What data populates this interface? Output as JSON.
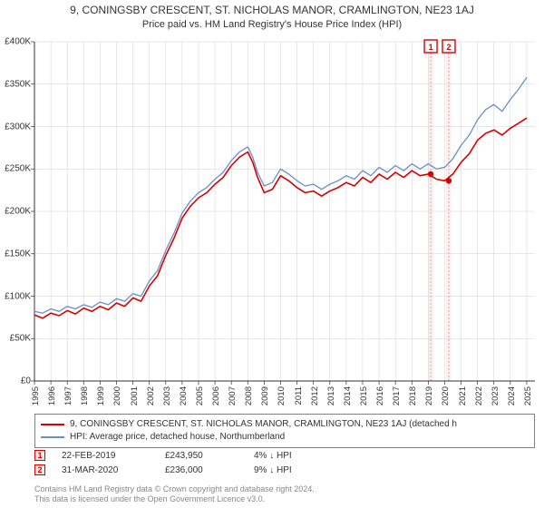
{
  "title": "9, CONINGSBY CRESCENT, ST. NICHOLAS MANOR, CRAMLINGTON, NE23 1AJ",
  "subtitle": "Price paid vs. HM Land Registry's House Price Index (HPI)",
  "chart": {
    "type": "line",
    "background_color": "#ffffff",
    "grid_color": "#d0d0d0",
    "x_years": [
      1995,
      1996,
      1997,
      1998,
      1999,
      2000,
      2001,
      2002,
      2003,
      2004,
      2005,
      2006,
      2007,
      2008,
      2009,
      2010,
      2011,
      2012,
      2013,
      2014,
      2015,
      2016,
      2017,
      2018,
      2019,
      2020,
      2021,
      2022,
      2023,
      2024,
      2025
    ],
    "xlim": [
      1995,
      2025.5
    ],
    "ylim": [
      0,
      400000
    ],
    "ytick_step": 50000,
    "y_tick_labels": [
      "£0",
      "£50K",
      "£100K",
      "£150K",
      "£200K",
      "£250K",
      "£300K",
      "£350K",
      "£400K"
    ],
    "series": [
      {
        "name": "red",
        "color": "#d90000",
        "width": 1.6,
        "legend": "9, CONINGSBY CRESCENT, ST. NICHOLAS MANOR, CRAMLINGTON, NE23 1AJ (detached h",
        "points": [
          [
            1995.0,
            78000
          ],
          [
            1995.5,
            74000
          ],
          [
            1996.0,
            80000
          ],
          [
            1996.5,
            77000
          ],
          [
            1997.0,
            83000
          ],
          [
            1997.5,
            79000
          ],
          [
            1998.0,
            86000
          ],
          [
            1998.5,
            82000
          ],
          [
            1999.0,
            88000
          ],
          [
            1999.5,
            84000
          ],
          [
            2000.0,
            92000
          ],
          [
            2000.5,
            88000
          ],
          [
            2001.0,
            98000
          ],
          [
            2001.5,
            94000
          ],
          [
            2002.0,
            112000
          ],
          [
            2002.5,
            124000
          ],
          [
            2003.0,
            148000
          ],
          [
            2003.5,
            168000
          ],
          [
            2004.0,
            192000
          ],
          [
            2004.5,
            206000
          ],
          [
            2005.0,
            216000
          ],
          [
            2005.5,
            222000
          ],
          [
            2006.0,
            232000
          ],
          [
            2006.5,
            240000
          ],
          [
            2007.0,
            254000
          ],
          [
            2007.5,
            264000
          ],
          [
            2008.0,
            270000
          ],
          [
            2008.3,
            258000
          ],
          [
            2008.6,
            240000
          ],
          [
            2009.0,
            222000
          ],
          [
            2009.5,
            226000
          ],
          [
            2010.0,
            242000
          ],
          [
            2010.5,
            236000
          ],
          [
            2011.0,
            228000
          ],
          [
            2011.5,
            222000
          ],
          [
            2012.0,
            224000
          ],
          [
            2012.5,
            218000
          ],
          [
            2013.0,
            224000
          ],
          [
            2013.5,
            228000
          ],
          [
            2014.0,
            234000
          ],
          [
            2014.5,
            230000
          ],
          [
            2015.0,
            240000
          ],
          [
            2015.5,
            234000
          ],
          [
            2016.0,
            244000
          ],
          [
            2016.5,
            238000
          ],
          [
            2017.0,
            246000
          ],
          [
            2017.5,
            240000
          ],
          [
            2018.0,
            248000
          ],
          [
            2018.5,
            242000
          ],
          [
            2019.0,
            244000
          ],
          [
            2019.5,
            238000
          ],
          [
            2020.0,
            236000
          ],
          [
            2020.5,
            244000
          ],
          [
            2021.0,
            258000
          ],
          [
            2021.5,
            268000
          ],
          [
            2022.0,
            284000
          ],
          [
            2022.5,
            292000
          ],
          [
            2023.0,
            296000
          ],
          [
            2023.5,
            290000
          ],
          [
            2024.0,
            298000
          ],
          [
            2024.5,
            304000
          ],
          [
            2025.0,
            310000
          ]
        ]
      },
      {
        "name": "blue",
        "color": "#6a8fc8",
        "width": 1.3,
        "legend": "HPI: Average price, detached house, Northumberland",
        "points": [
          [
            1995.0,
            82000
          ],
          [
            1995.5,
            80000
          ],
          [
            1996.0,
            85000
          ],
          [
            1996.5,
            82000
          ],
          [
            1997.0,
            88000
          ],
          [
            1997.5,
            85000
          ],
          [
            1998.0,
            90000
          ],
          [
            1998.5,
            87000
          ],
          [
            1999.0,
            93000
          ],
          [
            1999.5,
            90000
          ],
          [
            2000.0,
            97000
          ],
          [
            2000.5,
            94000
          ],
          [
            2001.0,
            103000
          ],
          [
            2001.5,
            100000
          ],
          [
            2002.0,
            118000
          ],
          [
            2002.5,
            130000
          ],
          [
            2003.0,
            154000
          ],
          [
            2003.5,
            174000
          ],
          [
            2004.0,
            198000
          ],
          [
            2004.5,
            212000
          ],
          [
            2005.0,
            222000
          ],
          [
            2005.5,
            228000
          ],
          [
            2006.0,
            238000
          ],
          [
            2006.5,
            246000
          ],
          [
            2007.0,
            260000
          ],
          [
            2007.5,
            270000
          ],
          [
            2008.0,
            276000
          ],
          [
            2008.3,
            264000
          ],
          [
            2008.6,
            246000
          ],
          [
            2009.0,
            230000
          ],
          [
            2009.5,
            234000
          ],
          [
            2010.0,
            250000
          ],
          [
            2010.5,
            244000
          ],
          [
            2011.0,
            236000
          ],
          [
            2011.5,
            230000
          ],
          [
            2012.0,
            232000
          ],
          [
            2012.5,
            226000
          ],
          [
            2013.0,
            232000
          ],
          [
            2013.5,
            236000
          ],
          [
            2014.0,
            242000
          ],
          [
            2014.5,
            238000
          ],
          [
            2015.0,
            248000
          ],
          [
            2015.5,
            242000
          ],
          [
            2016.0,
            252000
          ],
          [
            2016.5,
            246000
          ],
          [
            2017.0,
            254000
          ],
          [
            2017.5,
            248000
          ],
          [
            2018.0,
            256000
          ],
          [
            2018.5,
            250000
          ],
          [
            2019.0,
            256000
          ],
          [
            2019.5,
            250000
          ],
          [
            2020.0,
            252000
          ],
          [
            2020.5,
            262000
          ],
          [
            2021.0,
            278000
          ],
          [
            2021.5,
            290000
          ],
          [
            2022.0,
            308000
          ],
          [
            2022.5,
            320000
          ],
          [
            2023.0,
            326000
          ],
          [
            2023.5,
            318000
          ],
          [
            2024.0,
            332000
          ],
          [
            2024.5,
            344000
          ],
          [
            2025.0,
            358000
          ]
        ]
      }
    ],
    "sale_markers": [
      {
        "n": "1",
        "x": 2019.15,
        "y": 243950,
        "color": "#d90000"
      },
      {
        "n": "2",
        "x": 2020.25,
        "y": 236000,
        "color": "#d90000"
      }
    ]
  },
  "sales": [
    {
      "n": "1",
      "date": "22-FEB-2019",
      "price": "£243,950",
      "pct": "4% ↓ HPI",
      "color": "#d90000",
      "fill": "#ffe8e8"
    },
    {
      "n": "2",
      "date": "31-MAR-2020",
      "price": "£236,000",
      "pct": "9% ↓ HPI",
      "color": "#d90000",
      "fill": "#ffe8e8"
    }
  ],
  "footer": {
    "line1": "Contains HM Land Registry data © Crown copyright and database right 2024.",
    "line2": "This data is licensed under the Open Government Licence v3.0."
  }
}
